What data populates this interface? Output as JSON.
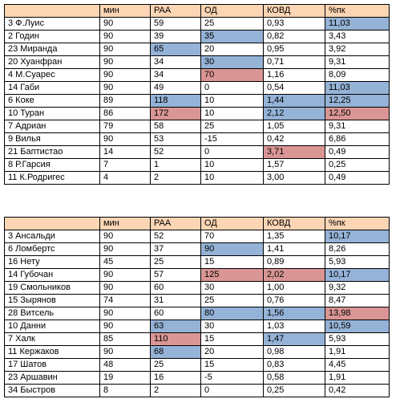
{
  "colors": {
    "header": "#fcd5b4",
    "blue": "#95b3d7",
    "red": "#da9694"
  },
  "tables": [
    {
      "headers": [
        "",
        "мин",
        "PAA",
        "ОД",
        "КОВД",
        "%пк"
      ],
      "rows": [
        {
          "cells": [
            "3 Ф.Луис",
            "90",
            "59",
            "25",
            "0,93",
            "11,03"
          ],
          "hl": [
            "",
            "",
            "",
            "",
            "",
            "blue"
          ]
        },
        {
          "cells": [
            "2 Годин",
            "90",
            "39",
            "35",
            "0,82",
            "3,43"
          ],
          "hl": [
            "",
            "",
            "",
            "blue",
            "",
            ""
          ]
        },
        {
          "cells": [
            "23 Миранда",
            "90",
            "65",
            "20",
            "0,95",
            "3,92"
          ],
          "hl": [
            "",
            "",
            "blue",
            "",
            "",
            ""
          ]
        },
        {
          "cells": [
            "20 Хуанфран",
            "90",
            "34",
            "30",
            "0,71",
            "9,31"
          ],
          "hl": [
            "",
            "",
            "",
            "blue",
            "",
            ""
          ]
        },
        {
          "cells": [
            "4 М.Суарес",
            "90",
            "34",
            "70",
            "1,16",
            "8,09"
          ],
          "hl": [
            "",
            "",
            "",
            "red",
            "",
            ""
          ]
        },
        {
          "cells": [
            "14 Габи",
            "90",
            "49",
            "0",
            "0,54",
            "11,03"
          ],
          "hl": [
            "",
            "",
            "",
            "",
            "",
            "blue"
          ]
        },
        {
          "cells": [
            "6 Коке",
            "89",
            "118",
            "10",
            "1,44",
            "12,25"
          ],
          "hl": [
            "",
            "",
            "blue",
            "",
            "blue",
            "blue"
          ]
        },
        {
          "cells": [
            "10 Туран",
            "86",
            "172",
            "10",
            "2,12",
            "12,50"
          ],
          "hl": [
            "",
            "",
            "red",
            "",
            "blue",
            "red"
          ]
        },
        {
          "cells": [
            "7 Адриан",
            "79",
            "58",
            "25",
            "1,05",
            "9,31"
          ],
          "hl": [
            "",
            "",
            "",
            "",
            "",
            ""
          ]
        },
        {
          "cells": [
            "9 Вилья",
            "90",
            "53",
            "-15",
            "0,42",
            "6,86"
          ],
          "hl": [
            "",
            "",
            "",
            "",
            "",
            ""
          ]
        },
        {
          "cells": [
            "21 Баптистао",
            "14",
            "52",
            "0",
            "3,71",
            "0,49"
          ],
          "hl": [
            "",
            "",
            "",
            "",
            "red",
            ""
          ]
        },
        {
          "cells": [
            "8 Р.Гарсия",
            "7",
            "1",
            "10",
            "1,57",
            "0,25"
          ],
          "hl": [
            "",
            "",
            "",
            "",
            "",
            ""
          ]
        },
        {
          "cells": [
            "11 К.Родригес",
            "4",
            "2",
            "10",
            "3,00",
            "0,49"
          ],
          "hl": [
            "",
            "",
            "",
            "",
            "",
            ""
          ]
        }
      ]
    },
    {
      "headers": [
        "",
        "мин",
        "PAA",
        "ОД",
        "КОВД",
        "%пк"
      ],
      "rows": [
        {
          "cells": [
            "3 Ансальди",
            "90",
            "52",
            "70",
            "1,35",
            "10,17"
          ],
          "hl": [
            "",
            "",
            "",
            "",
            "",
            "blue"
          ]
        },
        {
          "cells": [
            "6 Ломбертс",
            "90",
            "37",
            "90",
            "1,41",
            "8,26"
          ],
          "hl": [
            "",
            "",
            "",
            "blue",
            "",
            ""
          ]
        },
        {
          "cells": [
            "16 Нету",
            "45",
            "25",
            "15",
            "0,89",
            "5,93"
          ],
          "hl": [
            "",
            "",
            "",
            "",
            "",
            ""
          ]
        },
        {
          "cells": [
            "14 Губочан",
            "90",
            "57",
            "125",
            "2,02",
            "10,17"
          ],
          "hl": [
            "",
            "",
            "",
            "red",
            "red",
            "blue"
          ]
        },
        {
          "cells": [
            "19 Смольников",
            "90",
            "60",
            "30",
            "1,00",
            "9,32"
          ],
          "hl": [
            "",
            "",
            "",
            "",
            "",
            ""
          ]
        },
        {
          "cells": [
            "15 Зырянов",
            "74",
            "31",
            "25",
            "0,76",
            "8,47"
          ],
          "hl": [
            "",
            "",
            "",
            "",
            "",
            ""
          ]
        },
        {
          "cells": [
            "28 Витсель",
            "90",
            "60",
            "80",
            "1,56",
            "13,98"
          ],
          "hl": [
            "",
            "",
            "",
            "blue",
            "blue",
            "red"
          ]
        },
        {
          "cells": [
            "10 Данни",
            "90",
            "63",
            "30",
            "1,03",
            "10,59"
          ],
          "hl": [
            "",
            "",
            "blue",
            "",
            "",
            "blue"
          ]
        },
        {
          "cells": [
            "7 Халк",
            "85",
            "110",
            "15",
            "1,47",
            "5,93"
          ],
          "hl": [
            "",
            "",
            "red",
            "",
            "blue",
            ""
          ]
        },
        {
          "cells": [
            "11 Кержаков",
            "90",
            "68",
            "20",
            "0,98",
            "1,91"
          ],
          "hl": [
            "",
            "",
            "blue",
            "",
            "",
            ""
          ]
        },
        {
          "cells": [
            "17 Шатов",
            "48",
            "25",
            "15",
            "0,83",
            "4,45"
          ],
          "hl": [
            "",
            "",
            "",
            "",
            "",
            ""
          ]
        },
        {
          "cells": [
            "23 Аршавин",
            "19",
            "16",
            "-5",
            "0,58",
            "1,91"
          ],
          "hl": [
            "",
            "",
            "",
            "",
            "",
            ""
          ]
        },
        {
          "cells": [
            "34 Быстров",
            "8",
            "2",
            "0",
            "0,25",
            "0,42"
          ],
          "hl": [
            "",
            "",
            "",
            "",
            "",
            ""
          ]
        }
      ]
    }
  ]
}
